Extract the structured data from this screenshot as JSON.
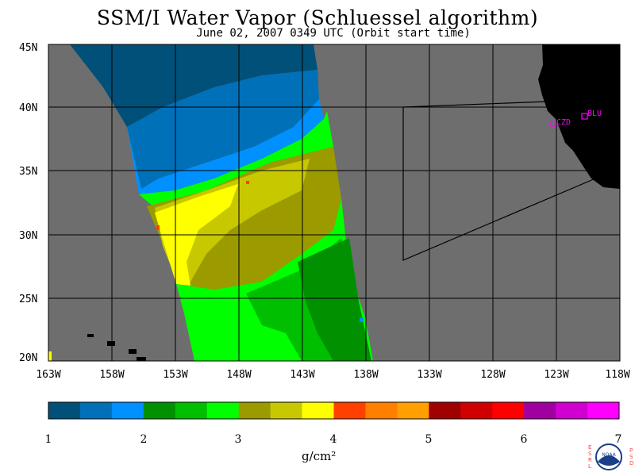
{
  "title": "SSM/I Water Vapor (Schluessel algorithm)",
  "subtitle": "June 02, 2007  0349 UTC  (Orbit start time)",
  "lat_labels": [
    "45N",
    "40N",
    "35N",
    "30N",
    "25N",
    "20N"
  ],
  "lon_labels": [
    "163W",
    "158W",
    "153W",
    "148W",
    "143W",
    "138W",
    "133W",
    "128W",
    "123W",
    "118W"
  ],
  "stations": [
    "CZD",
    "BLU"
  ],
  "colorbar": {
    "colors": [
      "#00507a",
      "#0070b8",
      "#0090ff",
      "#009000",
      "#00bf00",
      "#00ff00",
      "#9b9b00",
      "#c8c800",
      "#ffff00",
      "#ff4000",
      "#ff8000",
      "#ffa000",
      "#a00000",
      "#d00000",
      "#ff0000",
      "#a000a0",
      "#d000d0",
      "#ff00ff"
    ],
    "tick_labels": [
      "1",
      "2",
      "3",
      "4",
      "5",
      "6",
      "7"
    ],
    "unit": "g/cm²"
  },
  "logo_text": {
    "left": "ESRL",
    "right": "PSD",
    "center": "NOAA"
  },
  "colors": {
    "land": "#000000",
    "no_data": "#6e6e6e",
    "station": "#ff00ff"
  }
}
